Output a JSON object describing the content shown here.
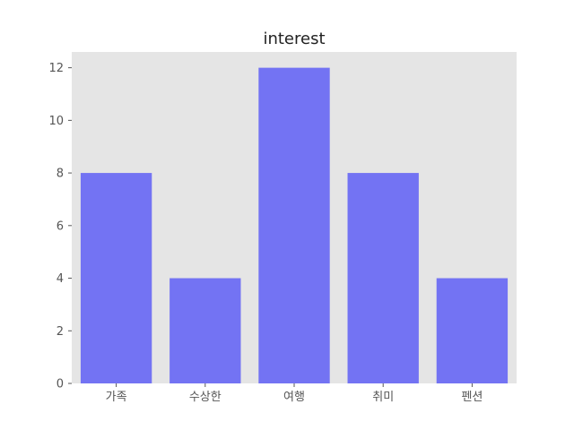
{
  "chart_data": {
    "type": "bar",
    "title": "interest",
    "xlabel": "",
    "ylabel": "",
    "categories": [
      "가족",
      "수상한",
      "여행",
      "취미",
      "펜션"
    ],
    "values": [
      8,
      4,
      12,
      8,
      4
    ],
    "ylim": [
      0,
      12.6
    ],
    "yticks": [
      0,
      2,
      4,
      6,
      8,
      10,
      12
    ],
    "grid": false,
    "colors": {
      "bar": "#7373f3",
      "plot_background": "#e5e5e5"
    }
  }
}
